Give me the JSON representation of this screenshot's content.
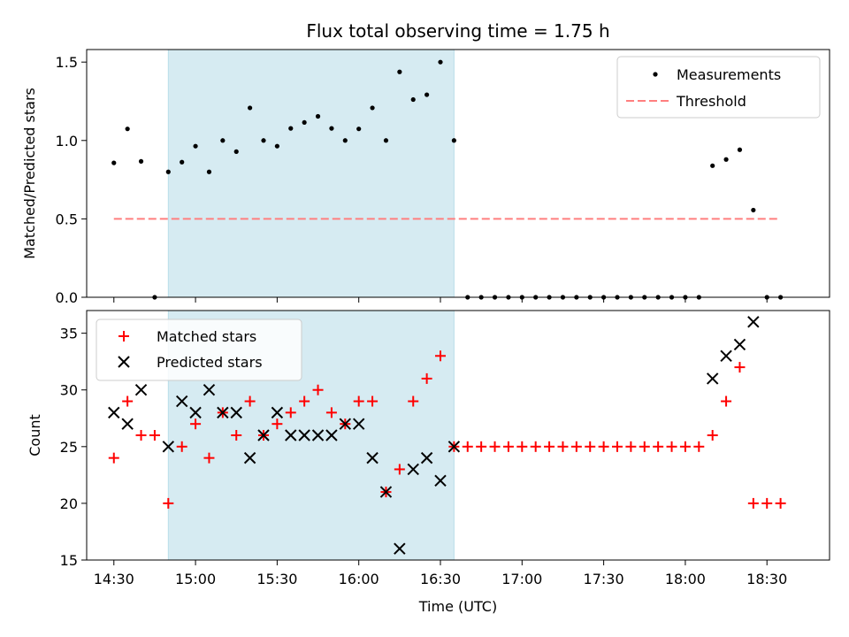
{
  "chart_data": [
    {
      "type": "scatter",
      "title": "Flux total observing time = 1.75 h",
      "ylabel": "Matched/Predicted stars",
      "xlabel": "",
      "ylim": [
        0,
        1.58
      ],
      "yticks": [
        0.0,
        0.5,
        1.0,
        1.5
      ],
      "yticklabels": [
        "0.0",
        "0.5",
        "1.0",
        "1.5"
      ],
      "legend_position": "top-right",
      "shaded_interval": [
        "14:50",
        "16:35"
      ],
      "shade_color": "#add8e6",
      "series": [
        {
          "name": "Measurements",
          "marker": "dot",
          "color": "#000000",
          "x": [
            "14:30",
            "14:35",
            "14:40",
            "14:45",
            "14:50",
            "14:55",
            "15:00",
            "15:05",
            "15:10",
            "15:15",
            "15:20",
            "15:25",
            "15:30",
            "15:35",
            "15:40",
            "15:45",
            "15:50",
            "15:55",
            "16:00",
            "16:05",
            "16:10",
            "16:15",
            "16:20",
            "16:25",
            "16:30",
            "16:35",
            "16:40",
            "16:45",
            "16:50",
            "16:55",
            "17:00",
            "17:05",
            "17:10",
            "17:15",
            "17:20",
            "17:25",
            "17:30",
            "17:35",
            "17:40",
            "17:45",
            "17:50",
            "17:55",
            "18:00",
            "18:05",
            "18:10",
            "18:15",
            "18:20",
            "18:25",
            "18:30",
            "18:35"
          ],
          "y": [
            0.857,
            1.074,
            0.867,
            0.0,
            0.8,
            0.862,
            0.964,
            0.8,
            1.0,
            0.929,
            1.208,
            1.0,
            0.964,
            1.077,
            1.115,
            1.154,
            1.077,
            1.0,
            1.074,
            1.208,
            1.0,
            1.4375,
            1.261,
            1.292,
            1.5,
            1.0,
            0.0,
            0.0,
            0.0,
            0.0,
            0.0,
            0.0,
            0.0,
            0.0,
            0.0,
            0.0,
            0.0,
            0.0,
            0.0,
            0.0,
            0.0,
            0.0,
            0.0,
            0.0,
            0.839,
            0.879,
            0.941,
            0.556,
            0.0,
            0.0
          ]
        },
        {
          "name": "Threshold",
          "marker": "dashed-line",
          "color": "#ff7f7f",
          "x": [
            "14:30",
            "18:35"
          ],
          "y": [
            0.5,
            0.5
          ]
        }
      ]
    },
    {
      "type": "scatter",
      "title": "",
      "ylabel": "Count",
      "xlabel": "Time (UTC)",
      "ylim": [
        15,
        37
      ],
      "yticks": [
        15,
        20,
        25,
        30,
        35
      ],
      "yticklabels": [
        "15",
        "20",
        "25",
        "30",
        "35"
      ],
      "xticks": [
        "14:30",
        "15:00",
        "15:30",
        "16:00",
        "16:30",
        "17:00",
        "17:30",
        "18:00",
        "18:30"
      ],
      "xlim": [
        "14:20",
        "18:53"
      ],
      "legend_position": "top-left",
      "shaded_interval": [
        "14:50",
        "16:35"
      ],
      "shade_color": "#add8e6",
      "series": [
        {
          "name": "Matched stars",
          "marker": "plus",
          "color": "#ff0000",
          "x": [
            "14:30",
            "14:35",
            "14:40",
            "14:45",
            "14:50",
            "14:55",
            "15:00",
            "15:05",
            "15:10",
            "15:15",
            "15:20",
            "15:25",
            "15:30",
            "15:35",
            "15:40",
            "15:45",
            "15:50",
            "15:55",
            "16:00",
            "16:05",
            "16:10",
            "16:15",
            "16:20",
            "16:25",
            "16:30",
            "16:35",
            "16:40",
            "16:45",
            "16:50",
            "16:55",
            "17:00",
            "17:05",
            "17:10",
            "17:15",
            "17:20",
            "17:25",
            "17:30",
            "17:35",
            "17:40",
            "17:45",
            "17:50",
            "17:55",
            "18:00",
            "18:05",
            "18:10",
            "18:15",
            "18:20",
            "18:25",
            "18:30",
            "18:35"
          ],
          "y": [
            24,
            29,
            26,
            26,
            20,
            25,
            27,
            24,
            28,
            26,
            29,
            26,
            27,
            28,
            29,
            30,
            28,
            27,
            29,
            29,
            21,
            23,
            29,
            31,
            33,
            25,
            25,
            25,
            25,
            25,
            25,
            25,
            25,
            25,
            25,
            25,
            25,
            25,
            25,
            25,
            25,
            25,
            25,
            25,
            26,
            29,
            32,
            20,
            20,
            20
          ]
        },
        {
          "name": "Predicted stars",
          "marker": "x",
          "color": "#000000",
          "x": [
            "14:30",
            "14:35",
            "14:40",
            "14:50",
            "14:55",
            "15:00",
            "15:05",
            "15:10",
            "15:15",
            "15:20",
            "15:25",
            "15:30",
            "15:35",
            "15:40",
            "15:45",
            "15:50",
            "15:55",
            "16:00",
            "16:05",
            "16:10",
            "16:15",
            "16:20",
            "16:25",
            "16:30",
            "16:35",
            "18:10",
            "18:15",
            "18:20",
            "18:25"
          ],
          "y": [
            28,
            27,
            30,
            25,
            29,
            28,
            30,
            28,
            28,
            24,
            26,
            28,
            26,
            26,
            26,
            26,
            27,
            27,
            24,
            21,
            16,
            23,
            24,
            22,
            25,
            31,
            33,
            34,
            36
          ]
        }
      ]
    }
  ]
}
